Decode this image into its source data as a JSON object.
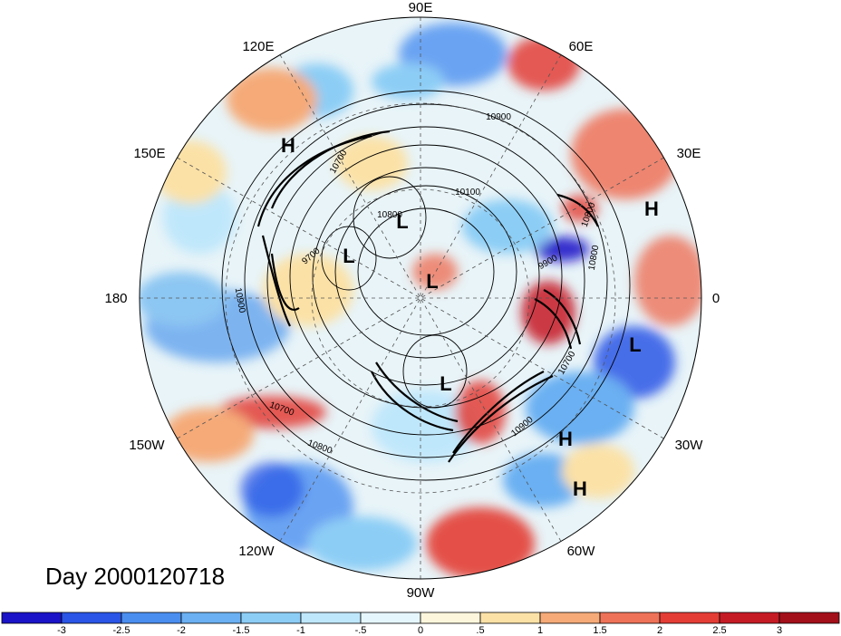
{
  "title": "Day 2000120718",
  "longitude_labels": [
    "90E",
    "120E",
    "60E",
    "150E",
    "30E",
    "180",
    "0",
    "150W",
    "30W",
    "120W",
    "60W",
    "90W"
  ],
  "contour_labels": [
    "10900",
    "10100",
    "10800",
    "9700",
    "10900",
    "10800",
    "10700",
    "10800",
    "10700",
    "10900",
    "9900",
    "10700",
    "10800"
  ],
  "centers": [
    {
      "label": "H"
    },
    {
      "label": "H"
    },
    {
      "label": "H"
    },
    {
      "label": "H"
    },
    {
      "label": "L"
    },
    {
      "label": "L"
    },
    {
      "label": "L"
    },
    {
      "label": "L"
    },
    {
      "label": "L"
    }
  ],
  "colorbar": {
    "tick_labels": [
      "-3",
      "-2.5",
      "-2",
      "-1.5",
      "-1",
      "-.5",
      "0",
      ".5",
      "1",
      "1.5",
      "2",
      "2.5",
      "3"
    ],
    "colors": [
      "#1a13c7",
      "#2a55e6",
      "#4a8ef0",
      "#6ab0f2",
      "#8ccdf5",
      "#bfe7fb",
      "#e6f6fd",
      "#fdf6dc",
      "#fbe1a6",
      "#f5aa78",
      "#ee7258",
      "#e33d35",
      "#c51b25",
      "#a3101a"
    ]
  }
}
